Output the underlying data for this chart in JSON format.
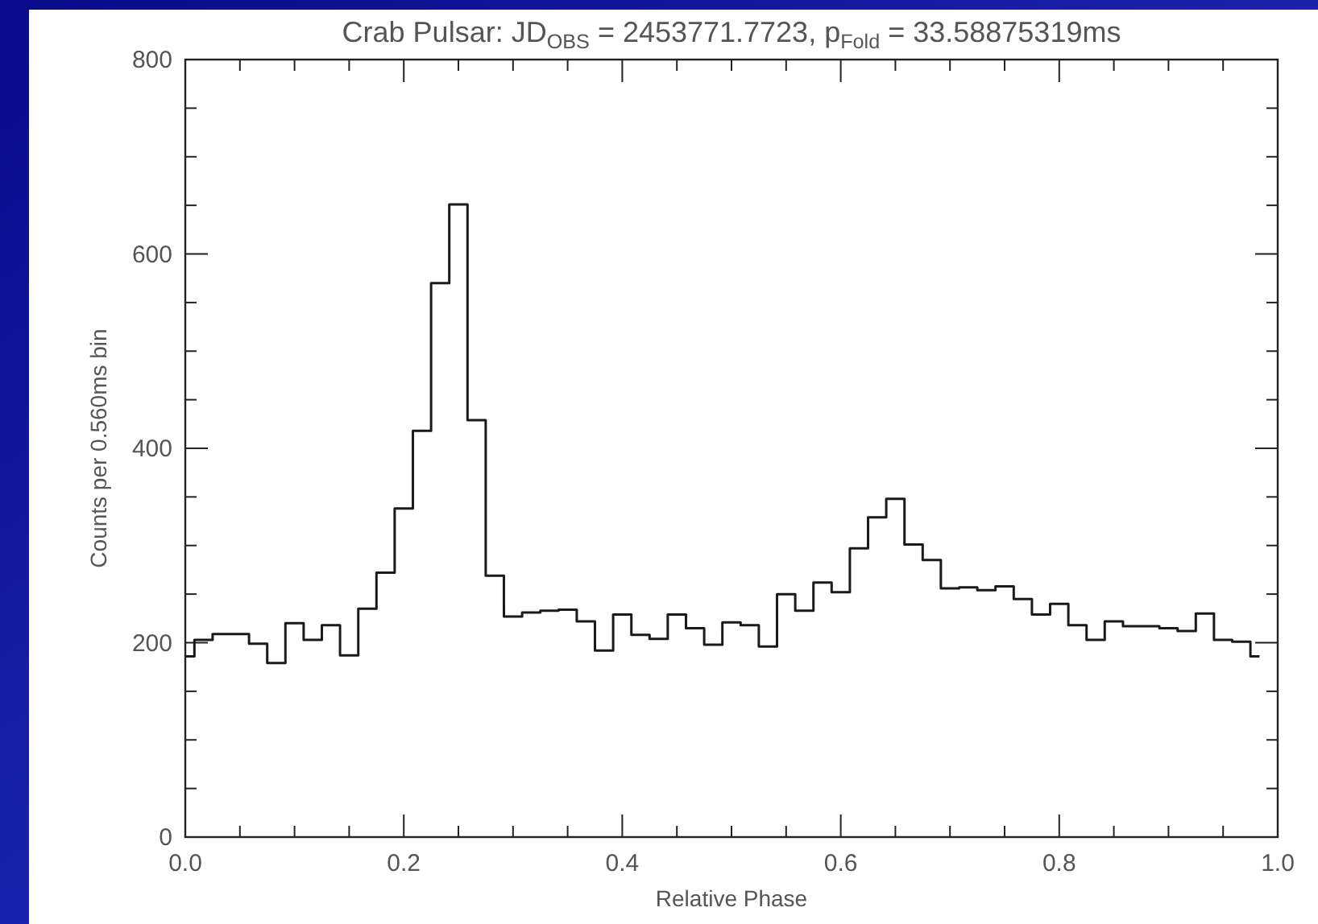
{
  "chart_data": {
    "type": "step",
    "title": "Crab Pulsar: JD$_{OBS}$ = 2453771.7723, p$_{Fold}$ = 33.58875319ms",
    "xlabel": "Relative Phase",
    "ylabel": "Counts per 0.560ms bin",
    "x": [
      0,
      0.0167,
      0.0333,
      0.05,
      0.0667,
      0.0833,
      0.1,
      0.1167,
      0.1333,
      0.15,
      0.1667,
      0.1833,
      0.2,
      0.2167,
      0.2333,
      0.25,
      0.2667,
      0.2833,
      0.3,
      0.3167,
      0.3333,
      0.35,
      0.3667,
      0.3833,
      0.4,
      0.4167,
      0.4333,
      0.45,
      0.4667,
      0.4833,
      0.5,
      0.5167,
      0.5333,
      0.55,
      0.5667,
      0.5833,
      0.6,
      0.6167,
      0.6333,
      0.65,
      0.6667,
      0.6833,
      0.7,
      0.7167,
      0.7333,
      0.75,
      0.7667,
      0.7833,
      0.8,
      0.8167,
      0.8333,
      0.85,
      0.8667,
      0.8833,
      0.9,
      0.9167,
      0.9333,
      0.95,
      0.9667,
      0.9833
    ],
    "series": [
      {
        "color": "#1a1a1a",
        "values": [
          186,
          203,
          209,
          209,
          199,
          179,
          220,
          203,
          218,
          187,
          235,
          272,
          338,
          418,
          570,
          651,
          429,
          269,
          227,
          231,
          233,
          234,
          222,
          192,
          229,
          208,
          204,
          229,
          215,
          198,
          221,
          218,
          196,
          250,
          233,
          262,
          252,
          297,
          329,
          348,
          301,
          285,
          256,
          257,
          254,
          258,
          245,
          229,
          240,
          218,
          203,
          222,
          217,
          217,
          215,
          212,
          230,
          203,
          201,
          186
        ]
      }
    ],
    "xlim": [
      0,
      1
    ],
    "ylim": [
      0,
      800
    ],
    "xticks": [
      {
        "value": 0,
        "label": "0.0"
      },
      {
        "value": 0.05,
        "label": null
      },
      {
        "value": 0.1,
        "label": null
      },
      {
        "value": 0.15,
        "label": null
      },
      {
        "value": 0.2,
        "label": "0.2"
      },
      {
        "value": 0.25,
        "label": null
      },
      {
        "value": 0.3,
        "label": null
      },
      {
        "value": 0.35,
        "label": null
      },
      {
        "value": 0.4,
        "label": "0.4"
      },
      {
        "value": 0.45,
        "label": null
      },
      {
        "value": 0.5,
        "label": null
      },
      {
        "value": 0.55,
        "label": null
      },
      {
        "value": 0.6,
        "label": "0.6"
      },
      {
        "value": 0.65,
        "label": null
      },
      {
        "value": 0.7,
        "label": null
      },
      {
        "value": 0.75,
        "label": null
      },
      {
        "value": 0.8,
        "label": "0.8"
      },
      {
        "value": 0.85,
        "label": null
      },
      {
        "value": 0.9,
        "label": null
      },
      {
        "value": 0.95,
        "label": null
      },
      {
        "value": 1,
        "label": "1.0"
      }
    ],
    "yticks": [
      0,
      {
        "value": 50,
        "label": null
      },
      {
        "value": 100,
        "label": null
      },
      {
        "value": 150,
        "label": null
      },
      200,
      {
        "value": 250,
        "label": null
      },
      {
        "value": 300,
        "label": null
      },
      {
        "value": 350,
        "label": null
      },
      400,
      {
        "value": 450,
        "label": null
      },
      {
        "value": 500,
        "label": null
      },
      {
        "value": 550,
        "label": null
      },
      600,
      {
        "value": 650,
        "label": null
      },
      {
        "value": 700,
        "label": null
      },
      {
        "value": 750,
        "label": null
      },
      800
    ],
    "grid": false,
    "marker": "none",
    "line_style": "solid"
  }
}
